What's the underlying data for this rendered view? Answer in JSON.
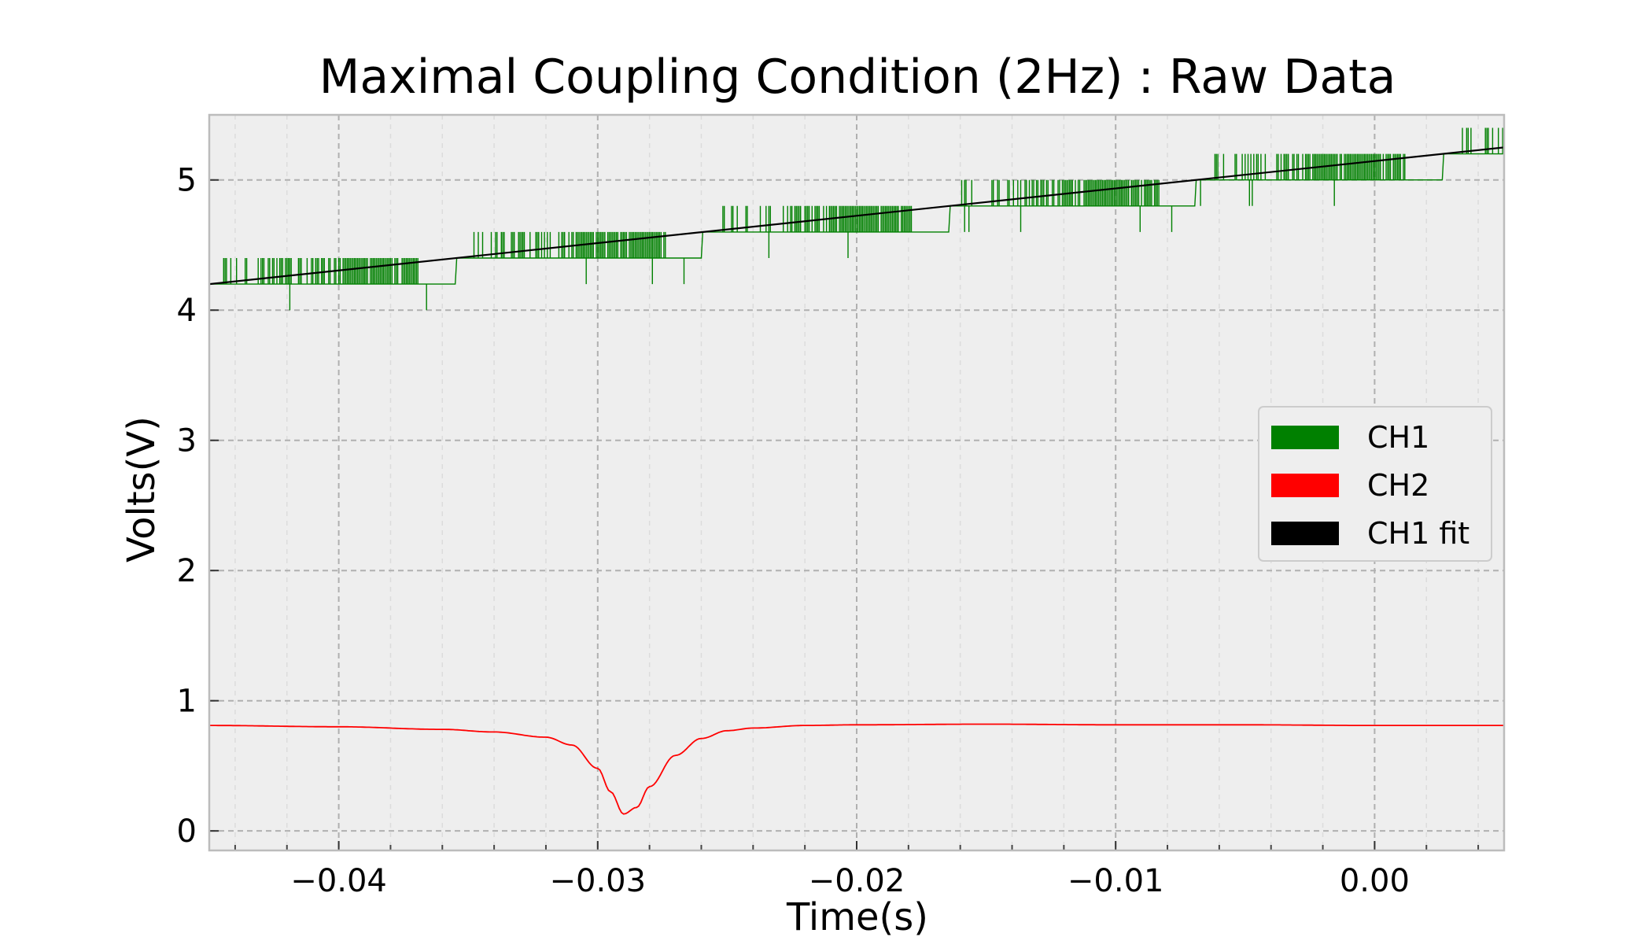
{
  "chart_data": {
    "type": "line",
    "title": "Maximal Coupling Condition (2Hz) : Raw Data",
    "xlabel": "Time(s)",
    "ylabel": "Volts(V)",
    "xlim": [
      -0.045,
      0.005
    ],
    "ylim": [
      -0.15,
      5.5
    ],
    "xticks": [
      -0.04,
      -0.03,
      -0.02,
      -0.01,
      0.0
    ],
    "xtick_labels": [
      "−0.04",
      "−0.03",
      "−0.02",
      "−0.01",
      "0.00"
    ],
    "yticks": [
      0,
      1,
      2,
      3,
      4,
      5
    ],
    "ytick_labels": [
      "0",
      "1",
      "2",
      "3",
      "4",
      "5"
    ],
    "x_minor_step": 0.002,
    "grid": true,
    "legend_position": "center-right",
    "background": "#eeeeee",
    "series": [
      {
        "name": "CH1",
        "color": "#008000",
        "kind": "quantized-step-noise",
        "levels": [
          4.2,
          4.4,
          4.6,
          4.8,
          5.0,
          5.2
        ],
        "trend": {
          "x": [
            -0.045,
            0.005
          ],
          "y": [
            4.2,
            5.25
          ]
        }
      },
      {
        "name": "CH2",
        "color": "#ff0000",
        "x": [
          -0.045,
          -0.04,
          -0.036,
          -0.034,
          -0.032,
          -0.031,
          -0.03,
          -0.0295,
          -0.029,
          -0.0285,
          -0.028,
          -0.027,
          -0.026,
          -0.025,
          -0.024,
          -0.022,
          -0.02,
          -0.015,
          -0.01,
          -0.005,
          0.0,
          0.005
        ],
        "y": [
          0.81,
          0.8,
          0.78,
          0.76,
          0.72,
          0.66,
          0.48,
          0.3,
          0.13,
          0.18,
          0.34,
          0.58,
          0.71,
          0.77,
          0.79,
          0.81,
          0.815,
          0.82,
          0.815,
          0.815,
          0.81,
          0.81
        ]
      },
      {
        "name": "CH1 fit",
        "color": "#000000",
        "x": [
          -0.045,
          0.005
        ],
        "y": [
          4.2,
          5.25
        ]
      }
    ]
  }
}
